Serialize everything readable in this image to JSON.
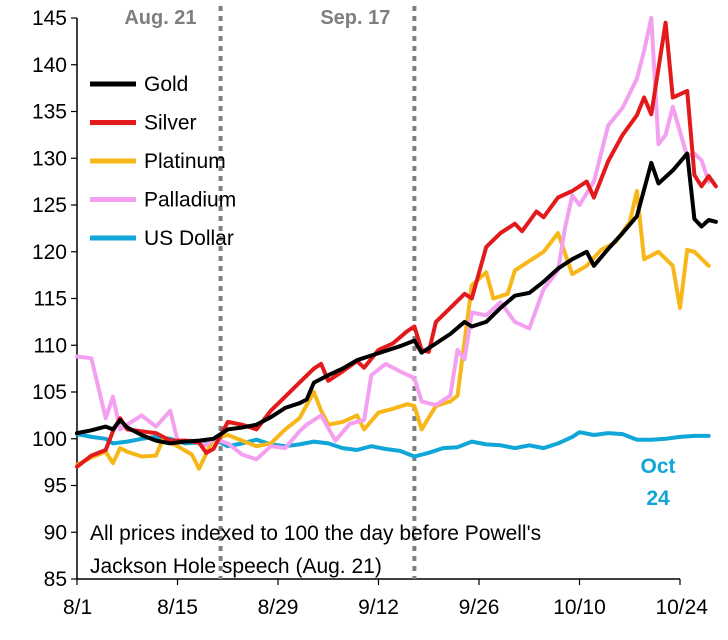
{
  "chart_data": {
    "type": "line",
    "title": "",
    "xlabel": "",
    "ylabel": "",
    "x_ticks": [
      "8/1",
      "8/15",
      "8/29",
      "9/12",
      "9/26",
      "10/10",
      "10/24"
    ],
    "x_range": [
      "2022-08-01",
      "2022-10-24"
    ],
    "ylim": [
      85,
      145
    ],
    "y_ticks": [
      85,
      90,
      95,
      100,
      105,
      110,
      115,
      120,
      125,
      130,
      135,
      140,
      145
    ],
    "grid": false,
    "legend_placement": "top-left",
    "vertical_markers": [
      {
        "label": "Aug. 21",
        "date": "2022-08-21",
        "style": "dotted",
        "color": "#7f7f7f"
      },
      {
        "label": "Sep. 17",
        "date": "2022-09-17",
        "style": "dotted",
        "color": "#7f7f7f"
      }
    ],
    "annotation": {
      "line1": "All prices indexed to 100 the day before Powell's",
      "line2": "Jackson Hole speech (Aug. 21)"
    },
    "end_label": {
      "line1": "Oct",
      "line2": "24",
      "color": "#10a6d8"
    },
    "series": [
      {
        "name": "Gold",
        "color": "#000000",
        "points": [
          [
            "2022-08-01",
            100.6
          ],
          [
            "2022-08-03",
            100.9
          ],
          [
            "2022-08-05",
            101.3
          ],
          [
            "2022-08-06",
            101.0
          ],
          [
            "2022-08-07",
            102.0
          ],
          [
            "2022-08-08",
            101.2
          ],
          [
            "2022-08-10",
            100.4
          ],
          [
            "2022-08-12",
            99.8
          ],
          [
            "2022-08-14",
            99.5
          ],
          [
            "2022-08-16",
            99.7
          ],
          [
            "2022-08-18",
            99.8
          ],
          [
            "2022-08-20",
            100.0
          ],
          [
            "2022-08-22",
            101.0
          ],
          [
            "2022-08-24",
            101.2
          ],
          [
            "2022-08-26",
            101.5
          ],
          [
            "2022-08-28",
            102.3
          ],
          [
            "2022-08-30",
            103.3
          ],
          [
            "2022-09-01",
            103.8
          ],
          [
            "2022-09-02",
            104.2
          ],
          [
            "2022-09-03",
            106.0
          ],
          [
            "2022-09-05",
            106.8
          ],
          [
            "2022-09-07",
            107.5
          ],
          [
            "2022-09-09",
            108.4
          ],
          [
            "2022-09-11",
            108.9
          ],
          [
            "2022-09-13",
            109.4
          ],
          [
            "2022-09-15",
            109.9
          ],
          [
            "2022-09-17",
            110.5
          ],
          [
            "2022-09-18",
            109.2
          ],
          [
            "2022-09-20",
            110.2
          ],
          [
            "2022-09-22",
            111.2
          ],
          [
            "2022-09-24",
            112.5
          ],
          [
            "2022-09-25",
            112.0
          ],
          [
            "2022-09-27",
            112.5
          ],
          [
            "2022-09-29",
            114.0
          ],
          [
            "2022-10-01",
            115.3
          ],
          [
            "2022-10-03",
            115.6
          ],
          [
            "2022-10-05",
            116.8
          ],
          [
            "2022-10-07",
            118.2
          ],
          [
            "2022-10-09",
            119.2
          ],
          [
            "2022-10-11",
            120.0
          ],
          [
            "2022-10-12",
            118.5
          ],
          [
            "2022-10-14",
            120.3
          ],
          [
            "2022-10-16",
            122.0
          ],
          [
            "2022-10-18",
            123.8
          ],
          [
            "2022-10-20",
            129.5
          ],
          [
            "2022-10-21",
            127.3
          ],
          [
            "2022-10-23",
            128.7
          ],
          [
            "2022-10-25",
            130.5
          ],
          [
            "2022-10-26",
            123.5
          ],
          [
            "2022-10-27",
            122.7
          ],
          [
            "2022-10-28",
            123.4
          ],
          [
            "2022-10-29",
            123.2
          ]
        ]
      },
      {
        "name": "Silver",
        "color": "#e31a1c",
        "points": [
          [
            "2022-08-01",
            97.0
          ],
          [
            "2022-08-03",
            98.2
          ],
          [
            "2022-08-05",
            98.8
          ],
          [
            "2022-08-06",
            100.8
          ],
          [
            "2022-08-07",
            102.2
          ],
          [
            "2022-08-08",
            101.0
          ],
          [
            "2022-08-10",
            100.8
          ],
          [
            "2022-08-12",
            100.6
          ],
          [
            "2022-08-14",
            99.8
          ],
          [
            "2022-08-16",
            99.8
          ],
          [
            "2022-08-18",
            99.6
          ],
          [
            "2022-08-19",
            98.5
          ],
          [
            "2022-08-20",
            98.9
          ],
          [
            "2022-08-22",
            101.8
          ],
          [
            "2022-08-24",
            101.5
          ],
          [
            "2022-08-26",
            101.0
          ],
          [
            "2022-08-28",
            103.0
          ],
          [
            "2022-08-30",
            104.5
          ],
          [
            "2022-09-01",
            106.0
          ],
          [
            "2022-09-03",
            107.5
          ],
          [
            "2022-09-04",
            108.0
          ],
          [
            "2022-09-05",
            106.2
          ],
          [
            "2022-09-07",
            107.2
          ],
          [
            "2022-09-09",
            108.3
          ],
          [
            "2022-09-10",
            107.6
          ],
          [
            "2022-09-12",
            109.5
          ],
          [
            "2022-09-14",
            110.2
          ],
          [
            "2022-09-16",
            111.5
          ],
          [
            "2022-09-17",
            112.0
          ],
          [
            "2022-09-18",
            109.5
          ],
          [
            "2022-09-19",
            109.3
          ],
          [
            "2022-09-20",
            112.5
          ],
          [
            "2022-09-22",
            114.0
          ],
          [
            "2022-09-24",
            115.5
          ],
          [
            "2022-09-25",
            115.0
          ],
          [
            "2022-09-27",
            120.5
          ],
          [
            "2022-09-29",
            122.0
          ],
          [
            "2022-10-01",
            123.0
          ],
          [
            "2022-10-02",
            122.2
          ],
          [
            "2022-10-04",
            124.3
          ],
          [
            "2022-10-05",
            123.7
          ],
          [
            "2022-10-07",
            125.8
          ],
          [
            "2022-10-09",
            126.5
          ],
          [
            "2022-10-11",
            127.5
          ],
          [
            "2022-10-12",
            125.8
          ],
          [
            "2022-10-14",
            129.7
          ],
          [
            "2022-10-16",
            132.5
          ],
          [
            "2022-10-18",
            134.6
          ],
          [
            "2022-10-19",
            136.5
          ],
          [
            "2022-10-20",
            134.7
          ],
          [
            "2022-10-22",
            144.5
          ],
          [
            "2022-10-23",
            136.5
          ],
          [
            "2022-10-25",
            137.2
          ],
          [
            "2022-10-26",
            128.2
          ],
          [
            "2022-10-27",
            127.0
          ],
          [
            "2022-10-28",
            128.1
          ],
          [
            "2022-10-29",
            127.0
          ]
        ]
      },
      {
        "name": "Platinum",
        "color": "#f7b718",
        "points": [
          [
            "2022-08-01",
            97.2
          ],
          [
            "2022-08-03",
            98.0
          ],
          [
            "2022-08-05",
            98.6
          ],
          [
            "2022-08-06",
            97.4
          ],
          [
            "2022-08-07",
            99.0
          ],
          [
            "2022-08-08",
            98.6
          ],
          [
            "2022-08-10",
            98.1
          ],
          [
            "2022-08-12",
            98.2
          ],
          [
            "2022-08-13",
            100.0
          ],
          [
            "2022-08-15",
            99.2
          ],
          [
            "2022-08-17",
            98.3
          ],
          [
            "2022-08-18",
            96.8
          ],
          [
            "2022-08-20",
            100.0
          ],
          [
            "2022-08-22",
            100.4
          ],
          [
            "2022-08-24",
            99.8
          ],
          [
            "2022-08-26",
            99.2
          ],
          [
            "2022-08-28",
            99.5
          ],
          [
            "2022-08-30",
            101.0
          ],
          [
            "2022-09-01",
            102.2
          ],
          [
            "2022-09-03",
            105.0
          ],
          [
            "2022-09-04",
            103.0
          ],
          [
            "2022-09-05",
            101.5
          ],
          [
            "2022-09-07",
            101.8
          ],
          [
            "2022-09-09",
            102.5
          ],
          [
            "2022-09-10",
            101.0
          ],
          [
            "2022-09-12",
            102.8
          ],
          [
            "2022-09-14",
            103.2
          ],
          [
            "2022-09-16",
            103.7
          ],
          [
            "2022-09-17",
            103.5
          ],
          [
            "2022-09-18",
            101.0
          ],
          [
            "2022-09-20",
            103.5
          ],
          [
            "2022-09-22",
            104.0
          ],
          [
            "2022-09-23",
            104.6
          ],
          [
            "2022-09-25",
            116.4
          ],
          [
            "2022-09-27",
            117.8
          ],
          [
            "2022-09-28",
            115.0
          ],
          [
            "2022-09-30",
            115.5
          ],
          [
            "2022-10-01",
            118.0
          ],
          [
            "2022-10-03",
            119.0
          ],
          [
            "2022-10-05",
            120.0
          ],
          [
            "2022-10-07",
            122.0
          ],
          [
            "2022-10-09",
            117.6
          ],
          [
            "2022-10-11",
            118.5
          ],
          [
            "2022-10-13",
            120.2
          ],
          [
            "2022-10-15",
            121.0
          ],
          [
            "2022-10-17",
            123.2
          ],
          [
            "2022-10-18",
            126.5
          ],
          [
            "2022-10-19",
            119.2
          ],
          [
            "2022-10-21",
            120.0
          ],
          [
            "2022-10-23",
            118.5
          ],
          [
            "2022-10-24",
            114.0
          ],
          [
            "2022-10-25",
            120.2
          ],
          [
            "2022-10-26",
            120.0
          ],
          [
            "2022-10-28",
            118.5
          ]
        ]
      },
      {
        "name": "Palladium",
        "color": "#f4a0f0",
        "points": [
          [
            "2022-08-01",
            108.8
          ],
          [
            "2022-08-03",
            108.6
          ],
          [
            "2022-08-05",
            102.2
          ],
          [
            "2022-08-06",
            104.5
          ],
          [
            "2022-08-07",
            101.0
          ],
          [
            "2022-08-08",
            101.5
          ],
          [
            "2022-08-10",
            102.5
          ],
          [
            "2022-08-12",
            101.3
          ],
          [
            "2022-08-14",
            103.0
          ],
          [
            "2022-08-15",
            99.8
          ],
          [
            "2022-08-17",
            99.8
          ],
          [
            "2022-08-19",
            99.3
          ],
          [
            "2022-08-20",
            100.0
          ],
          [
            "2022-08-22",
            99.5
          ],
          [
            "2022-08-24",
            98.3
          ],
          [
            "2022-08-26",
            97.8
          ],
          [
            "2022-08-28",
            99.2
          ],
          [
            "2022-08-30",
            99.0
          ],
          [
            "2022-09-01",
            100.8
          ],
          [
            "2022-09-02",
            101.5
          ],
          [
            "2022-09-04",
            102.5
          ],
          [
            "2022-09-06",
            99.8
          ],
          [
            "2022-09-08",
            101.6
          ],
          [
            "2022-09-10",
            102.0
          ],
          [
            "2022-09-11",
            106.8
          ],
          [
            "2022-09-13",
            108.0
          ],
          [
            "2022-09-15",
            107.2
          ],
          [
            "2022-09-17",
            106.5
          ],
          [
            "2022-09-18",
            104.0
          ],
          [
            "2022-09-20",
            103.6
          ],
          [
            "2022-09-22",
            104.6
          ],
          [
            "2022-09-23",
            109.5
          ],
          [
            "2022-09-24",
            108.5
          ],
          [
            "2022-09-25",
            113.5
          ],
          [
            "2022-09-27",
            113.2
          ],
          [
            "2022-09-29",
            114.6
          ],
          [
            "2022-10-01",
            112.5
          ],
          [
            "2022-10-03",
            111.8
          ],
          [
            "2022-10-05",
            116.0
          ],
          [
            "2022-10-07",
            118.0
          ],
          [
            "2022-10-08",
            122.6
          ],
          [
            "2022-10-09",
            126.0
          ],
          [
            "2022-10-10",
            125.0
          ],
          [
            "2022-10-12",
            127.5
          ],
          [
            "2022-10-14",
            133.5
          ],
          [
            "2022-10-16",
            135.4
          ],
          [
            "2022-10-18",
            138.5
          ],
          [
            "2022-10-19",
            141.5
          ],
          [
            "2022-10-20",
            145.0
          ],
          [
            "2022-10-21",
            131.5
          ],
          [
            "2022-10-22",
            132.5
          ],
          [
            "2022-10-23",
            135.5
          ],
          [
            "2022-10-25",
            130.2
          ],
          [
            "2022-10-26",
            130.5
          ],
          [
            "2022-10-27",
            129.8
          ],
          [
            "2022-10-28",
            127.5
          ]
        ]
      },
      {
        "name": "US Dollar",
        "color": "#10a6d8",
        "points": [
          [
            "2022-08-01",
            100.5
          ],
          [
            "2022-08-03",
            100.2
          ],
          [
            "2022-08-05",
            100.0
          ],
          [
            "2022-08-06",
            99.5
          ],
          [
            "2022-08-08",
            99.7
          ],
          [
            "2022-08-10",
            100.0
          ],
          [
            "2022-08-12",
            100.2
          ],
          [
            "2022-08-14",
            100.0
          ],
          [
            "2022-08-16",
            99.5
          ],
          [
            "2022-08-18",
            99.6
          ],
          [
            "2022-08-20",
            100.0
          ],
          [
            "2022-08-22",
            99.2
          ],
          [
            "2022-08-24",
            99.5
          ],
          [
            "2022-08-26",
            99.9
          ],
          [
            "2022-08-28",
            99.4
          ],
          [
            "2022-08-30",
            99.2
          ],
          [
            "2022-09-01",
            99.4
          ],
          [
            "2022-09-03",
            99.7
          ],
          [
            "2022-09-05",
            99.5
          ],
          [
            "2022-09-07",
            99.0
          ],
          [
            "2022-09-09",
            98.8
          ],
          [
            "2022-09-11",
            99.2
          ],
          [
            "2022-09-13",
            98.9
          ],
          [
            "2022-09-15",
            98.7
          ],
          [
            "2022-09-17",
            98.1
          ],
          [
            "2022-09-19",
            98.5
          ],
          [
            "2022-09-21",
            99.0
          ],
          [
            "2022-09-23",
            99.1
          ],
          [
            "2022-09-25",
            99.7
          ],
          [
            "2022-09-27",
            99.4
          ],
          [
            "2022-09-29",
            99.3
          ],
          [
            "2022-10-01",
            99.0
          ],
          [
            "2022-10-03",
            99.3
          ],
          [
            "2022-10-05",
            99.0
          ],
          [
            "2022-10-07",
            99.5
          ],
          [
            "2022-10-09",
            100.2
          ],
          [
            "2022-10-10",
            100.7
          ],
          [
            "2022-10-12",
            100.4
          ],
          [
            "2022-10-14",
            100.6
          ],
          [
            "2022-10-16",
            100.5
          ],
          [
            "2022-10-18",
            99.9
          ],
          [
            "2022-10-20",
            99.9
          ],
          [
            "2022-10-22",
            100.0
          ],
          [
            "2022-10-24",
            100.2
          ],
          [
            "2022-10-26",
            100.3
          ],
          [
            "2022-10-28",
            100.3
          ]
        ]
      }
    ]
  }
}
